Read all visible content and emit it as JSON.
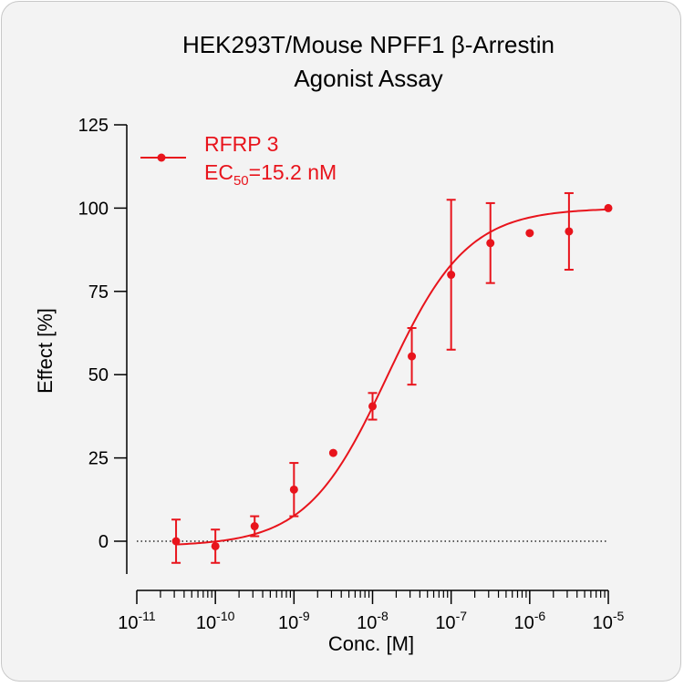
{
  "chart_data": {
    "type": "scatter",
    "title_lines": [
      "HEK293T/Mouse NPFF1 β-Arrestin",
      "Agonist Assay"
    ],
    "xlabel": "Conc. [M]",
    "ylabel": "Effect  [%]",
    "x_scale": "log",
    "x_tick_base": "10",
    "x_tick_exponents": [
      "-11",
      "-10",
      "-9",
      "-8",
      "-7",
      "-6",
      "-5"
    ],
    "xlim": [
      1e-11,
      1e-05
    ],
    "y_ticks": [
      "0",
      "25",
      "50",
      "75",
      "100",
      "125"
    ],
    "ylim": [
      -10,
      125
    ],
    "reference_line_y": 0,
    "legend_position": "top-left",
    "color": "#e8141c",
    "series": [
      {
        "name": "RFRP 3",
        "ec50_label": "EC",
        "ec50_sub": "50",
        "ec50_value": "=15.2 nM",
        "ec50": 1.52e-08,
        "hill_slope": 0.85,
        "bottom": -1.5,
        "top": 100,
        "x": [
          3.16e-11,
          1e-10,
          3.16e-10,
          1e-09,
          3.16e-09,
          1e-08,
          3.16e-08,
          1e-07,
          3.16e-07,
          1e-06,
          3.16e-06,
          1e-05
        ],
        "y": [
          0,
          -1.5,
          4.5,
          15.5,
          26.5,
          40.5,
          55.5,
          80,
          89.5,
          92.5,
          93,
          100
        ],
        "err": [
          6.5,
          5,
          3,
          8,
          0,
          4,
          8.5,
          22.5,
          12,
          0,
          11.5,
          0
        ]
      }
    ]
  }
}
